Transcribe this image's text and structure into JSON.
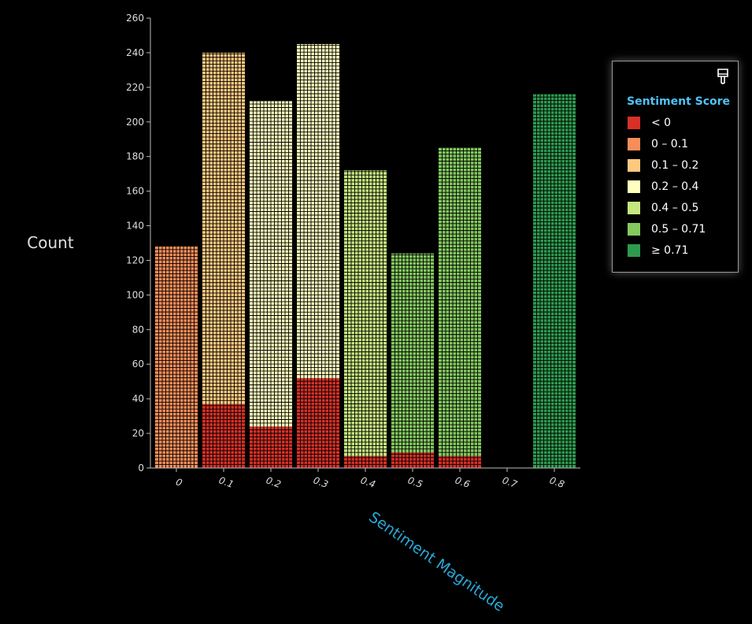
{
  "chart_data": {
    "type": "bar",
    "stacked": true,
    "style": "waffle",
    "xlabel": "Sentiment Magnitude",
    "ylabel": "Count",
    "ylim": [
      0,
      260
    ],
    "yticks": [
      0,
      20,
      40,
      60,
      80,
      100,
      120,
      140,
      160,
      180,
      200,
      220,
      240,
      260
    ],
    "x_ticks": [
      "0",
      "0.1",
      "0.2",
      "0.3",
      "0.4",
      "0.5",
      "0.6",
      "0.7",
      "0.8"
    ],
    "legend_title": "Sentiment Score",
    "legend_position": "top-right",
    "series": [
      {
        "name": "< 0",
        "color": "#d73027"
      },
      {
        "name": "0 – 0.1",
        "color": "#f88d59"
      },
      {
        "name": "0.1 – 0.2",
        "color": "#fdc97f"
      },
      {
        "name": "0.2 – 0.4",
        "color": "#fefebe"
      },
      {
        "name": "0.4 – 0.5",
        "color": "#c6e77f"
      },
      {
        "name": "0.5 – 0.71",
        "color": "#83c95f"
      },
      {
        "name": "≥ 0.71",
        "color": "#2e9a4e"
      }
    ],
    "bars": [
      {
        "x": "0",
        "segments": [
          {
            "series": "0 – 0.1",
            "value": 128
          }
        ]
      },
      {
        "x": "0.1",
        "segments": [
          {
            "series": "< 0",
            "value": 37
          },
          {
            "series": "0.1 – 0.2",
            "value": 203
          }
        ]
      },
      {
        "x": "0.2",
        "segments": [
          {
            "series": "< 0",
            "value": 24
          },
          {
            "series": "0.2 – 0.4",
            "value": 188
          }
        ]
      },
      {
        "x": "0.3",
        "segments": [
          {
            "series": "< 0",
            "value": 52
          },
          {
            "series": "0.2 – 0.4",
            "value": 193
          }
        ]
      },
      {
        "x": "0.4",
        "segments": [
          {
            "series": "< 0",
            "value": 7
          },
          {
            "series": "0.4 – 0.5",
            "value": 165
          }
        ]
      },
      {
        "x": "0.5",
        "segments": [
          {
            "series": "< 0",
            "value": 9
          },
          {
            "series": "0.5 – 0.71",
            "value": 115
          }
        ]
      },
      {
        "x": "0.6",
        "segments": [
          {
            "series": "< 0",
            "value": 7
          },
          {
            "series": "0.5 – 0.71",
            "value": 178
          }
        ]
      },
      {
        "x": "0.7",
        "segments": []
      },
      {
        "x": "0.8",
        "segments": [
          {
            "series": "≥ 0.71",
            "value": 216
          }
        ]
      }
    ]
  }
}
